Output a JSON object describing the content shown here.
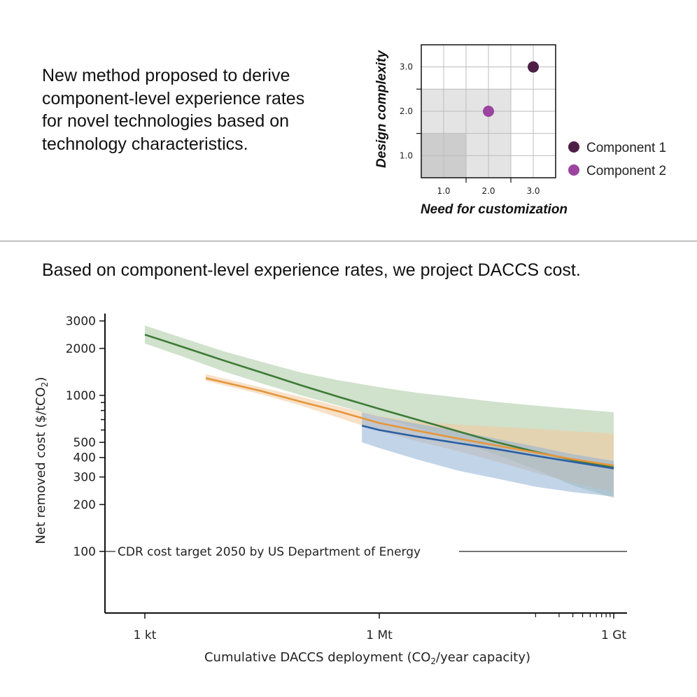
{
  "intro_lines": [
    "New method proposed to derive",
    "component-level experience rates",
    "for novel technologies based on",
    "technology characteristics."
  ],
  "lead_text": "Based on component-level experience rates, we project DACCS cost.",
  "colors": {
    "green": "#3d7a36",
    "green_band": "#a9c9a3",
    "orange": "#e5963c",
    "orange_band": "#f2c99a",
    "blue": "#2a5fa5",
    "blue_band": "#8fb0d6",
    "component1": "#4e1f45",
    "component2": "#9b44a0"
  },
  "chart_data": [
    {
      "type": "scatter",
      "title": "",
      "xlabel": "Need for customization",
      "ylabel": "Design complexity",
      "xlim": [
        0.5,
        3.5
      ],
      "ylim": [
        0.5,
        3.5
      ],
      "xticks": [
        "1.0",
        "2.0",
        "3.0"
      ],
      "yticks": [
        "1.0",
        "2.0",
        "3.0"
      ],
      "grid": true,
      "legend_placement": "right",
      "series": [
        {
          "name": "Component 1",
          "x": [
            3.0
          ],
          "y": [
            3.0
          ]
        },
        {
          "name": "Component 2",
          "x": [
            2.0
          ],
          "y": [
            2.0
          ]
        }
      ]
    },
    {
      "type": "line",
      "title": "",
      "xlabel": "Cumulative DACCS deployment (CO2/year capacity)",
      "ylabel": "Net removed cost ($/tCO2)",
      "x_scale": "log",
      "y_scale": "log",
      "xlim": [
        0.5,
        1200000
      ],
      "ylim": [
        40,
        3200
      ],
      "xtick_labels": [
        "1 kt",
        "1 Mt",
        "1 Gt"
      ],
      "ytick_labels": [
        "100",
        "200",
        "300",
        "400",
        "500",
        "1000",
        "2000",
        "3000"
      ],
      "annotation": "CDR cost target 2050 by US Department of Energy",
      "target_value": 100,
      "series": [
        {
          "x": [
            1,
            3,
            10,
            30,
            100,
            300,
            1000,
            3000,
            10000,
            30000,
            100000,
            300000,
            1000000
          ],
          "y": [
            2450,
            2050,
            1680,
            1410,
            1160,
            980,
            820,
            700,
            590,
            505,
            435,
            385,
            345
          ],
          "band_lower": [
            2150,
            1780,
            1430,
            1200,
            1000,
            860,
            730,
            620,
            510,
            420,
            335,
            265,
            220
          ],
          "band_upper": [
            2800,
            2340,
            1920,
            1650,
            1400,
            1250,
            1130,
            1040,
            970,
            910,
            860,
            820,
            780
          ]
        },
        {
          "x": [
            6,
            30,
            100,
            300,
            1000,
            3000,
            10000,
            30000,
            100000,
            300000,
            1000000
          ],
          "y": [
            1290,
            1070,
            910,
            790,
            665,
            595,
            530,
            480,
            430,
            390,
            355
          ],
          "band_lower": [
            1240,
            1020,
            860,
            720,
            590,
            510,
            440,
            380,
            320,
            275,
            240
          ],
          "band_upper": [
            1370,
            1130,
            980,
            850,
            735,
            680,
            650,
            630,
            610,
            590,
            570
          ]
        },
        {
          "x": [
            600,
            1000,
            3000,
            10000,
            30000,
            100000,
            300000,
            1000000
          ],
          "y": [
            640,
            600,
            545,
            495,
            455,
            410,
            375,
            340
          ],
          "band_lower": [
            500,
            460,
            390,
            330,
            295,
            260,
            240,
            225
          ],
          "band_upper": [
            780,
            730,
            660,
            590,
            530,
            470,
            420,
            380
          ]
        }
      ]
    }
  ]
}
